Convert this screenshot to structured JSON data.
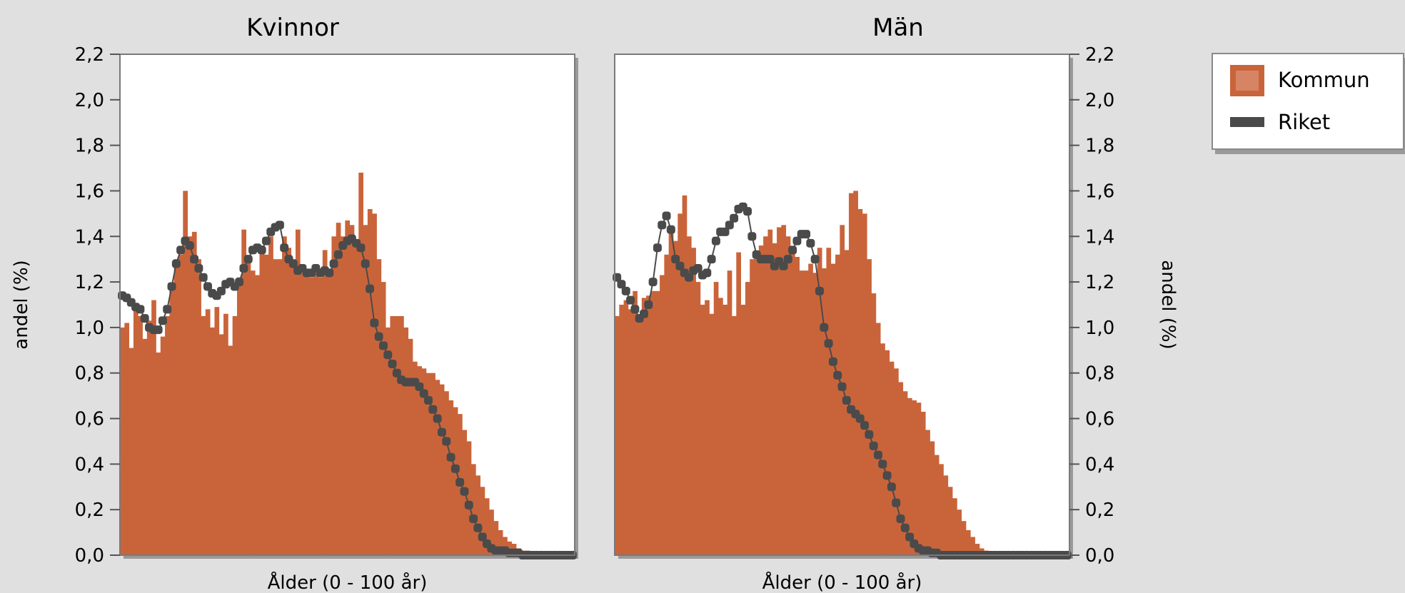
{
  "colors": {
    "background": "#e0e0e0",
    "plot_background": "#ffffff",
    "kommun": "#c9643a",
    "riket": "#4a4a4a"
  },
  "chart_data": [
    {
      "type": "bar",
      "title": "Kvinnor",
      "xlabel": "Ålder (0 - 100 år)",
      "ylabel": "andel (%)",
      "y_axis_side": "left",
      "xlim": [
        0,
        100
      ],
      "ylim": [
        0,
        2.2
      ],
      "yticks": [
        "0,0",
        "0,2",
        "0,4",
        "0,6",
        "0,8",
        "1,0",
        "1,2",
        "1,4",
        "1,6",
        "1,8",
        "2,0",
        "2,2"
      ],
      "grid": false,
      "x": [
        0,
        1,
        2,
        3,
        4,
        5,
        6,
        7,
        8,
        9,
        10,
        11,
        12,
        13,
        14,
        15,
        16,
        17,
        18,
        19,
        20,
        21,
        22,
        23,
        24,
        25,
        26,
        27,
        28,
        29,
        30,
        31,
        32,
        33,
        34,
        35,
        36,
        37,
        38,
        39,
        40,
        41,
        42,
        43,
        44,
        45,
        46,
        47,
        48,
        49,
        50,
        51,
        52,
        53,
        54,
        55,
        56,
        57,
        58,
        59,
        60,
        61,
        62,
        63,
        64,
        65,
        66,
        67,
        68,
        69,
        70,
        71,
        72,
        73,
        74,
        75,
        76,
        77,
        78,
        79,
        80,
        81,
        82,
        83,
        84,
        85,
        86,
        87,
        88,
        89,
        90,
        91,
        92,
        93,
        94,
        95,
        96,
        97,
        98,
        99,
        100
      ],
      "series": [
        {
          "name": "Kommun",
          "values": [
            1.0,
            1.02,
            0.91,
            1.1,
            1.05,
            0.95,
            1.03,
            1.12,
            0.89,
            0.96,
            1.05,
            1.18,
            1.3,
            1.32,
            1.6,
            1.4,
            1.42,
            1.3,
            1.05,
            1.08,
            1.0,
            1.09,
            0.97,
            1.06,
            0.92,
            1.05,
            1.22,
            1.43,
            1.3,
            1.25,
            1.23,
            1.36,
            1.32,
            1.4,
            1.3,
            1.3,
            1.4,
            1.35,
            1.3,
            1.43,
            1.24,
            1.25,
            1.22,
            1.24,
            1.22,
            1.34,
            1.25,
            1.4,
            1.46,
            1.4,
            1.47,
            1.45,
            1.38,
            1.68,
            1.45,
            1.52,
            1.5,
            1.3,
            1.2,
            1.0,
            1.05,
            1.05,
            1.05,
            1.0,
            0.95,
            0.85,
            0.83,
            0.82,
            0.8,
            0.8,
            0.77,
            0.75,
            0.72,
            0.68,
            0.65,
            0.62,
            0.55,
            0.5,
            0.4,
            0.35,
            0.3,
            0.25,
            0.2,
            0.15,
            0.11,
            0.08,
            0.06,
            0.05,
            0.03,
            0.02,
            0.02,
            0.01,
            0.01,
            0.0,
            0.0,
            0.0,
            0.0,
            0.0,
            0.0,
            0.0,
            0.0
          ]
        },
        {
          "name": "Riket",
          "values": [
            1.14,
            1.13,
            1.11,
            1.09,
            1.08,
            1.04,
            1.0,
            0.99,
            0.99,
            1.03,
            1.08,
            1.18,
            1.28,
            1.34,
            1.38,
            1.36,
            1.3,
            1.26,
            1.22,
            1.18,
            1.15,
            1.14,
            1.16,
            1.19,
            1.2,
            1.18,
            1.2,
            1.26,
            1.3,
            1.34,
            1.35,
            1.34,
            1.38,
            1.42,
            1.44,
            1.45,
            1.35,
            1.3,
            1.28,
            1.25,
            1.26,
            1.24,
            1.24,
            1.26,
            1.24,
            1.25,
            1.24,
            1.28,
            1.32,
            1.36,
            1.38,
            1.39,
            1.37,
            1.35,
            1.28,
            1.17,
            1.02,
            0.96,
            0.92,
            0.88,
            0.84,
            0.8,
            0.77,
            0.76,
            0.76,
            0.76,
            0.74,
            0.71,
            0.68,
            0.64,
            0.6,
            0.54,
            0.5,
            0.43,
            0.38,
            0.32,
            0.28,
            0.22,
            0.16,
            0.12,
            0.08,
            0.05,
            0.03,
            0.02,
            0.02,
            0.02,
            0.01,
            0.01,
            0.01,
            0.0,
            0.0,
            0.0,
            0.0,
            0.0,
            0.0,
            0.0,
            0.0,
            0.0,
            0.0,
            0.0,
            0.0
          ]
        }
      ]
    },
    {
      "type": "bar",
      "title": "Män",
      "xlabel": "Ålder (0 - 100 år)",
      "ylabel": "andel (%)",
      "y_axis_side": "right",
      "xlim": [
        0,
        100
      ],
      "ylim": [
        0,
        2.2
      ],
      "yticks": [
        "0,0",
        "0,2",
        "0,4",
        "0,6",
        "0,8",
        "1,0",
        "1,2",
        "1,4",
        "1,6",
        "1,8",
        "2,0",
        "2,2"
      ],
      "grid": false,
      "x": [
        0,
        1,
        2,
        3,
        4,
        5,
        6,
        7,
        8,
        9,
        10,
        11,
        12,
        13,
        14,
        15,
        16,
        17,
        18,
        19,
        20,
        21,
        22,
        23,
        24,
        25,
        26,
        27,
        28,
        29,
        30,
        31,
        32,
        33,
        34,
        35,
        36,
        37,
        38,
        39,
        40,
        41,
        42,
        43,
        44,
        45,
        46,
        47,
        48,
        49,
        50,
        51,
        52,
        53,
        54,
        55,
        56,
        57,
        58,
        59,
        60,
        61,
        62,
        63,
        64,
        65,
        66,
        67,
        68,
        69,
        70,
        71,
        72,
        73,
        74,
        75,
        76,
        77,
        78,
        79,
        80,
        81,
        82,
        83,
        84,
        85,
        86,
        87,
        88,
        89,
        90,
        91,
        92,
        93,
        94,
        95,
        96,
        97,
        98,
        99,
        100
      ],
      "series": [
        {
          "name": "Kommun",
          "values": [
            1.05,
            1.1,
            1.12,
            1.08,
            1.16,
            1.04,
            1.13,
            1.14,
            1.16,
            1.16,
            1.23,
            1.32,
            1.44,
            1.38,
            1.5,
            1.58,
            1.4,
            1.35,
            1.2,
            1.1,
            1.12,
            1.06,
            1.2,
            1.13,
            1.1,
            1.25,
            1.05,
            1.33,
            1.1,
            1.2,
            1.3,
            1.32,
            1.36,
            1.4,
            1.43,
            1.37,
            1.44,
            1.45,
            1.4,
            1.33,
            1.31,
            1.25,
            1.25,
            1.28,
            1.24,
            1.35,
            1.26,
            1.35,
            1.28,
            1.32,
            1.45,
            1.34,
            1.59,
            1.6,
            1.52,
            1.5,
            1.3,
            1.15,
            1.02,
            0.93,
            0.9,
            0.85,
            0.82,
            0.76,
            0.72,
            0.69,
            0.68,
            0.67,
            0.63,
            0.55,
            0.5,
            0.44,
            0.4,
            0.35,
            0.3,
            0.25,
            0.2,
            0.15,
            0.11,
            0.08,
            0.05,
            0.03,
            0.02,
            0.01,
            0.01,
            0.01,
            0.0,
            0.0,
            0.0,
            0.0,
            0.0,
            0.0,
            0.0,
            0.0,
            0.0,
            0.0,
            0.0,
            0.0,
            0.0,
            0.0,
            0.0
          ]
        },
        {
          "name": "Riket",
          "values": [
            1.22,
            1.19,
            1.16,
            1.12,
            1.08,
            1.04,
            1.06,
            1.1,
            1.2,
            1.35,
            1.45,
            1.49,
            1.43,
            1.3,
            1.27,
            1.24,
            1.22,
            1.25,
            1.26,
            1.23,
            1.24,
            1.3,
            1.38,
            1.42,
            1.42,
            1.45,
            1.48,
            1.52,
            1.53,
            1.51,
            1.4,
            1.32,
            1.3,
            1.3,
            1.3,
            1.27,
            1.29,
            1.27,
            1.3,
            1.34,
            1.38,
            1.41,
            1.41,
            1.37,
            1.3,
            1.16,
            1.0,
            0.93,
            0.85,
            0.79,
            0.74,
            0.68,
            0.64,
            0.62,
            0.6,
            0.57,
            0.53,
            0.48,
            0.44,
            0.4,
            0.35,
            0.3,
            0.23,
            0.16,
            0.12,
            0.08,
            0.05,
            0.03,
            0.02,
            0.02,
            0.01,
            0.01,
            0.0,
            0.0,
            0.0,
            0.0,
            0.0,
            0.0,
            0.0,
            0.0,
            0.0,
            0.0,
            0.0,
            0.0,
            0.0,
            0.0,
            0.0,
            0.0,
            0.0,
            0.0,
            0.0,
            0.0,
            0.0,
            0.0,
            0.0,
            0.0,
            0.0,
            0.0,
            0.0,
            0.0,
            0.0
          ]
        }
      ]
    }
  ],
  "legend": {
    "items": [
      {
        "label": "Kommun",
        "symbol": "filled-square",
        "color": "#c9643a"
      },
      {
        "label": "Riket",
        "symbol": "dash",
        "color": "#4a4a4a"
      }
    ]
  }
}
